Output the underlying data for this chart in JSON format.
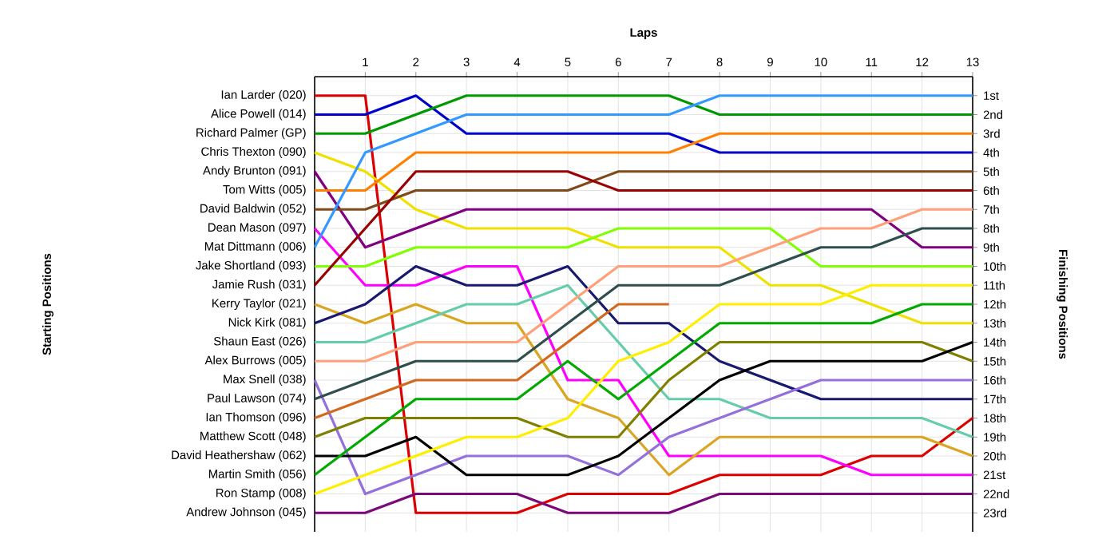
{
  "chart_data": {
    "type": "line",
    "xlabel": "Laps",
    "annotations": [
      "Starting Positions"
    ],
    "y2label": "Finishing Positions",
    "x": [
      0,
      1,
      2,
      3,
      4,
      5,
      6,
      7,
      8,
      9,
      10,
      11,
      12,
      13
    ],
    "xlim": [
      0,
      13
    ],
    "xticks": [
      1,
      2,
      3,
      4,
      5,
      6,
      7,
      8,
      9,
      10,
      11,
      12,
      13
    ],
    "ylim": [
      24,
      0
    ],
    "yticks": [
      {
        "value": 1,
        "label": "1st"
      },
      {
        "value": 2,
        "label": "2nd"
      },
      {
        "value": 3,
        "label": "3rd"
      },
      {
        "value": 4,
        "label": "4th"
      },
      {
        "value": 5,
        "label": "5th"
      },
      {
        "value": 6,
        "label": "6th"
      },
      {
        "value": 7,
        "label": "7th"
      },
      {
        "value": 8,
        "label": "8th"
      },
      {
        "value": 9,
        "label": "9th"
      },
      {
        "value": 10,
        "label": "10th"
      },
      {
        "value": 11,
        "label": "11th"
      },
      {
        "value": 12,
        "label": "12th"
      },
      {
        "value": 13,
        "label": "13th"
      },
      {
        "value": 14,
        "label": "14th"
      },
      {
        "value": 15,
        "label": "15th"
      },
      {
        "value": 16,
        "label": "16th"
      },
      {
        "value": 17,
        "label": "17th"
      },
      {
        "value": 18,
        "label": "18th"
      },
      {
        "value": 19,
        "label": "19th"
      },
      {
        "value": 20,
        "label": "20th"
      },
      {
        "value": 21,
        "label": "21st"
      },
      {
        "value": 22,
        "label": "22nd"
      },
      {
        "value": 23,
        "label": "23rd"
      }
    ],
    "grid": true,
    "marker": "none",
    "line_style": "solid",
    "series": [
      {
        "name": "Ian Larder (020)",
        "color": "#dd0000",
        "values": [
          1,
          1,
          23,
          23,
          23,
          22,
          22,
          22,
          21,
          21,
          21,
          20,
          20,
          18
        ]
      },
      {
        "name": "Alice Powell (014)",
        "color": "#0000cc",
        "values": [
          2,
          2,
          1,
          3,
          3,
          3,
          3,
          3,
          4,
          4,
          4,
          4,
          4,
          4
        ]
      },
      {
        "name": "Richard Palmer (GP)",
        "color": "#009900",
        "values": [
          3,
          3,
          2,
          1,
          1,
          1,
          1,
          1,
          2,
          2,
          2,
          2,
          2,
          2
        ]
      },
      {
        "name": "Chris Thexton (090)",
        "color": "#f0e000",
        "values": [
          4,
          5,
          7,
          8,
          8,
          8,
          9,
          9,
          9,
          11,
          11,
          12,
          13,
          13
        ]
      },
      {
        "name": "Andy Brunton (091)",
        "color": "#800080",
        "values": [
          5,
          9,
          8,
          7,
          7,
          7,
          7,
          7,
          7,
          7,
          7,
          7,
          9,
          9
        ]
      },
      {
        "name": "Tom Witts (005)",
        "color": "#ff8000",
        "values": [
          6,
          6,
          4,
          4,
          4,
          4,
          4,
          4,
          3,
          3,
          3,
          3,
          3,
          3
        ]
      },
      {
        "name": "David Baldwin (052)",
        "color": "#7f4a1a",
        "values": [
          7,
          7,
          6,
          6,
          6,
          6,
          5,
          5,
          5,
          5,
          5,
          5,
          5,
          5
        ]
      },
      {
        "name": "Dean Mason (097)",
        "color": "#ff00ff",
        "values": [
          8,
          11,
          11,
          10,
          10,
          16,
          16,
          20,
          20,
          20,
          20,
          21,
          21,
          21
        ]
      },
      {
        "name": "Mat Dittmann (006)",
        "color": "#3399ff",
        "values": [
          9,
          4,
          3,
          2,
          2,
          2,
          2,
          2,
          1,
          1,
          1,
          1,
          1,
          1
        ]
      },
      {
        "name": "Jake Shortland (093)",
        "color": "#80ff00",
        "values": [
          10,
          10,
          9,
          9,
          9,
          9,
          8,
          8,
          8,
          8,
          10,
          10,
          10,
          10
        ]
      },
      {
        "name": "Jamie Rush (031)",
        "color": "#990000",
        "values": [
          11,
          8,
          5,
          5,
          5,
          5,
          6,
          6,
          6,
          6,
          6,
          6,
          6,
          6
        ]
      },
      {
        "name": "Kerry Taylor (021)",
        "color": "#daa520",
        "values": [
          12,
          13,
          12,
          13,
          13,
          17,
          18,
          21,
          19,
          19,
          19,
          19,
          19,
          20
        ]
      },
      {
        "name": "Nick Kirk (081)",
        "color": "#191970",
        "values": [
          13,
          12,
          10,
          11,
          11,
          10,
          13,
          13,
          15,
          16,
          17,
          17,
          17,
          17
        ]
      },
      {
        "name": "Shaun East (026)",
        "color": "#66cdaa",
        "values": [
          14,
          14,
          13,
          12,
          12,
          11,
          14,
          17,
          17,
          18,
          18,
          18,
          18,
          19
        ]
      },
      {
        "name": "Alex Burrows (005)",
        "color": "#ffa07a",
        "values": [
          15,
          15,
          14,
          14,
          14,
          12,
          10,
          10,
          10,
          9,
          8,
          8,
          7,
          7
        ]
      },
      {
        "name": "Max Snell (038)",
        "color": "#9370db",
        "values": [
          16,
          22,
          21,
          20,
          20,
          20,
          21,
          19,
          18,
          17,
          16,
          16,
          16,
          16
        ]
      },
      {
        "name": "Paul Lawson (074)",
        "color": "#2f4f4f",
        "values": [
          17,
          16,
          15,
          15,
          15,
          13,
          11,
          11,
          11,
          10,
          9,
          9,
          8,
          8
        ]
      },
      {
        "name": "Ian Thomson (096)",
        "color": "#d2691e",
        "values": [
          18,
          17,
          16,
          16,
          16,
          14,
          12,
          12,
          null,
          null,
          null,
          null,
          null,
          null
        ]
      },
      {
        "name": "Matthew Scott (048)",
        "color": "#808000",
        "values": [
          19,
          18,
          18,
          18,
          18,
          19,
          19,
          16,
          14,
          14,
          14,
          14,
          14,
          15
        ]
      },
      {
        "name": "David Heathershaw (062)",
        "color": "#000000",
        "values": [
          20,
          20,
          19,
          21,
          21,
          21,
          20,
          18,
          16,
          15,
          15,
          15,
          15,
          14
        ]
      },
      {
        "name": "Martin Smith (056)",
        "color": "#00aa00",
        "values": [
          21,
          19,
          17,
          17,
          17,
          15,
          17,
          15,
          13,
          13,
          13,
          13,
          12,
          12
        ]
      },
      {
        "name": "Ron Stamp (008)",
        "color": "#ffee00",
        "values": [
          22,
          21,
          20,
          19,
          19,
          18,
          15,
          14,
          12,
          12,
          12,
          11,
          11,
          11
        ]
      },
      {
        "name": "Andrew Johnson (045)",
        "color": "#7a0a7a",
        "values": [
          23,
          23,
          22,
          22,
          22,
          23,
          23,
          23,
          22,
          22,
          22,
          22,
          22,
          22
        ]
      }
    ]
  }
}
